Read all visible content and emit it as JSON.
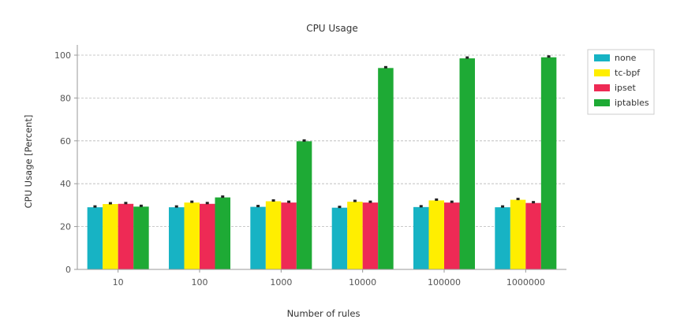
{
  "chart_data": {
    "type": "bar",
    "title": "CPU Usage",
    "xlabel": "Number of rules",
    "ylabel": "CPU Usage [Percent]",
    "ylim": [
      0,
      105
    ],
    "yticks": [
      0,
      20,
      40,
      60,
      80,
      100
    ],
    "grid": true,
    "legend_position": "top-right",
    "categories": [
      "10",
      "100",
      "1000",
      "10000",
      "100000",
      "1000000"
    ],
    "series": [
      {
        "name": "none",
        "color": "#17b3c4",
        "values": [
          29,
          29,
          29.2,
          28.8,
          29.1,
          29
        ]
      },
      {
        "name": "tc-bpf",
        "color": "#ffee00",
        "values": [
          30.5,
          31.2,
          31.8,
          31.6,
          32.2,
          32.5
        ]
      },
      {
        "name": "ipset",
        "color": "#ee2a55",
        "values": [
          30.6,
          30.6,
          31.2,
          31.2,
          31.2,
          31
        ]
      },
      {
        "name": "iptables",
        "color": "#1eaa35",
        "values": [
          29.3,
          33.6,
          59.8,
          94,
          98.5,
          99
        ]
      }
    ]
  }
}
